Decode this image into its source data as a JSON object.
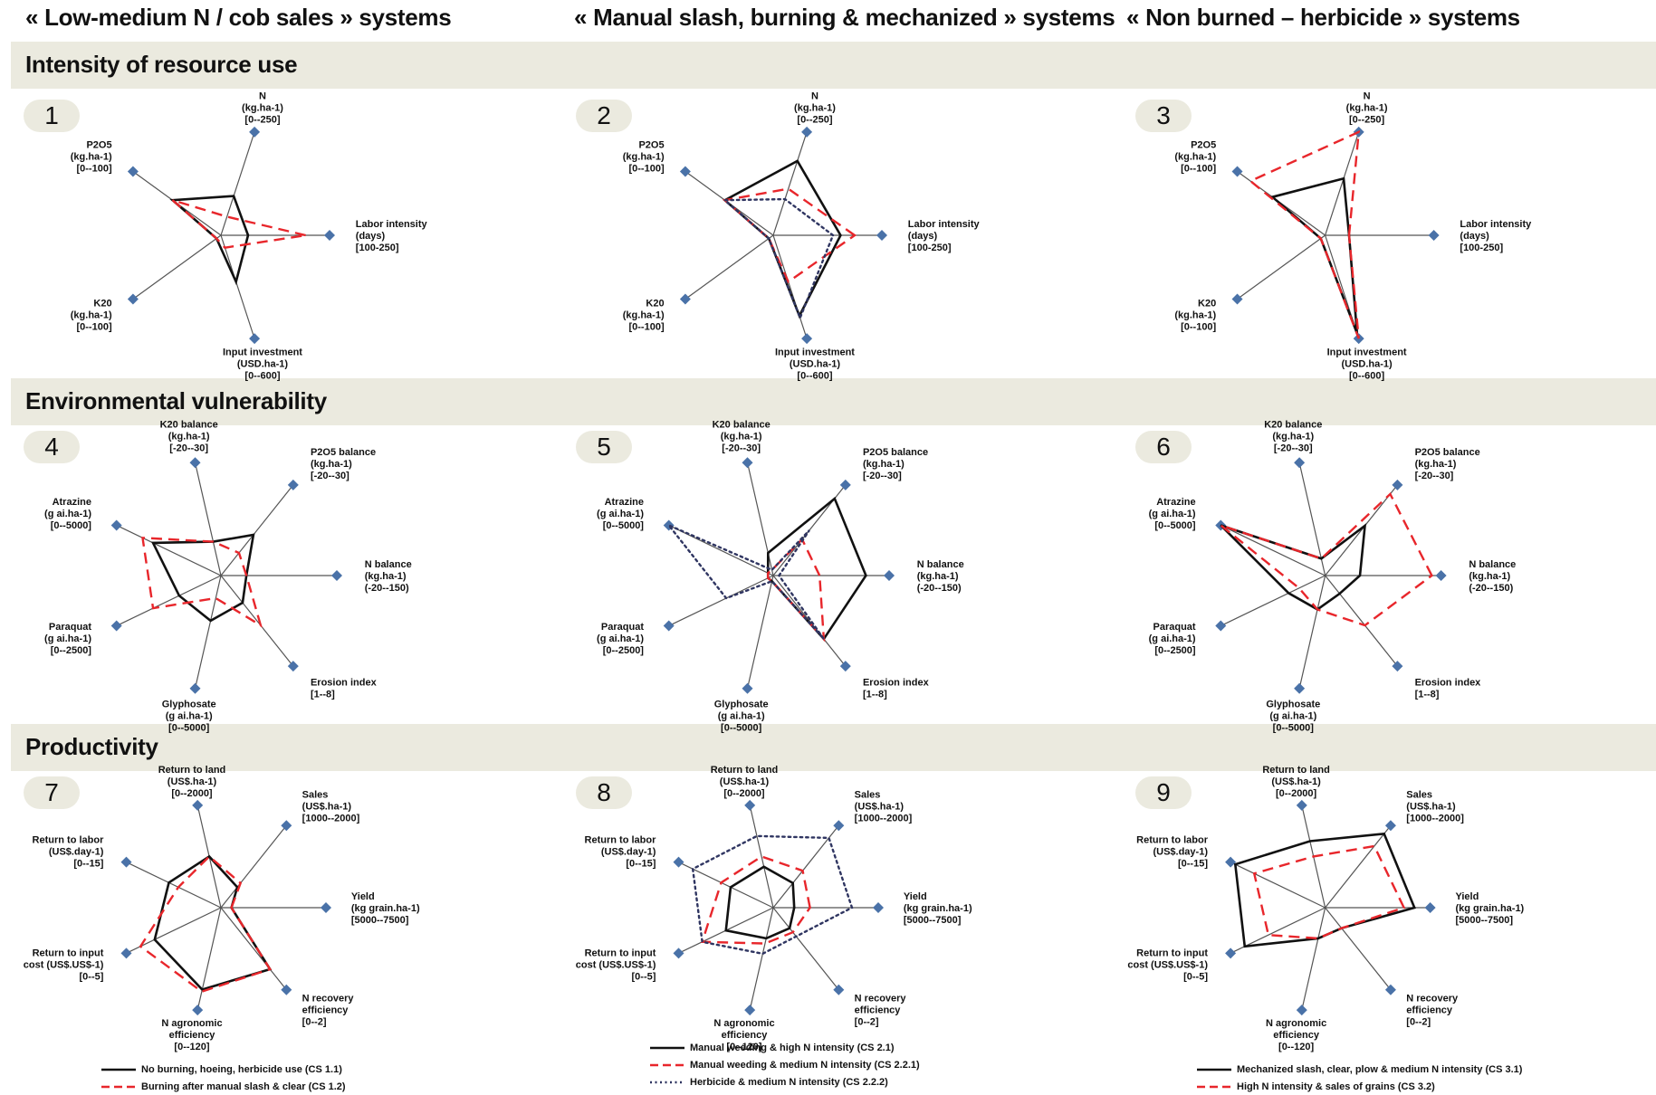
{
  "column_titles": [
    "« Low-medium N / cob sales » systems",
    "« Manual slash, burning & mechanized » systems",
    "« Non burned – herbicide  » systems"
  ],
  "section_titles": [
    "Intensity of resource use",
    "Environmental vulnerability",
    "Productivity"
  ],
  "legends": [
    [
      {
        "style": "solid",
        "label": "No burning, hoeing, herbicide use (CS 1.1)"
      },
      {
        "style": "dashed",
        "label": "Burning after manual slash & clear (CS 1.2)"
      }
    ],
    [
      {
        "style": "solid",
        "label": "Manual weeding & high N intensity (CS 2.1)"
      },
      {
        "style": "dashed",
        "label": "Manual weeding & medium N intensity (CS 2.2.1)"
      },
      {
        "style": "dotted",
        "label": "Herbicide & medium N intensity (CS 2.2.2)"
      }
    ],
    [
      {
        "style": "solid",
        "label": "Mechanized slash, clear, plow & medium N intensity (CS 3.1)"
      },
      {
        "style": "dashed",
        "label": "High N intensity & sales of grains (CS 3.2)"
      }
    ]
  ],
  "colors": {
    "solid": "#111111",
    "dashed": "#e8262b",
    "dotted": "#2f3561",
    "axis": "#555555",
    "marker": "#4a72a8",
    "band": "#ebeadf"
  },
  "chart_data": [
    {
      "id": "1",
      "type": "radar",
      "axes": [
        {
          "label": "Labor intensity\n(days)\n[100-250]",
          "range": [
            100,
            250
          ]
        },
        {
          "label": "N\n(kg.ha-1)\n[0--250]",
          "range": [
            0,
            250
          ]
        },
        {
          "label": "P2O5\n(kg.ha-1)\n[0--100]",
          "range": [
            0,
            100
          ]
        },
        {
          "label": "K20\n(kg.ha-1)\n[0--100]",
          "range": [
            0,
            100
          ]
        },
        {
          "label": "Input investment\n(USD.ha-1)\n[0--600]",
          "range": [
            0,
            600
          ]
        }
      ],
      "series": [
        {
          "style": "solid",
          "values": [
            0.25,
            0.38,
            0.55,
            0.05,
            0.45
          ]
        },
        {
          "style": "dashed",
          "values": [
            0.78,
            0.18,
            0.55,
            0.05,
            0.12
          ]
        }
      ]
    },
    {
      "id": "2",
      "type": "radar",
      "axes": [
        {
          "label": "Labor intensity\n(days)\n[100-250]",
          "range": [
            100,
            250
          ]
        },
        {
          "label": "N\n(kg.ha-1)\n[0--250]",
          "range": [
            0,
            250
          ]
        },
        {
          "label": "P2O5\n(kg.ha-1)\n[0--100]",
          "range": [
            0,
            100
          ]
        },
        {
          "label": "K20\n(kg.ha-1)\n[0--100]",
          "range": [
            0,
            100
          ]
        },
        {
          "label": "Input investment\n(USD.ha-1)\n[0--600]",
          "range": [
            0,
            600
          ]
        }
      ],
      "series": [
        {
          "style": "solid",
          "values": [
            0.62,
            0.72,
            0.55,
            0.05,
            0.78
          ]
        },
        {
          "style": "dashed",
          "values": [
            0.75,
            0.45,
            0.55,
            0.05,
            0.45
          ]
        },
        {
          "style": "dotted",
          "values": [
            0.55,
            0.35,
            0.55,
            0.05,
            0.8
          ]
        }
      ]
    },
    {
      "id": "3",
      "type": "radar",
      "axes": [
        {
          "label": "Labor intensity\n(days)\n[100-250]",
          "range": [
            100,
            250
          ]
        },
        {
          "label": "N\n(kg.ha-1)\n[0--250]",
          "range": [
            0,
            250
          ]
        },
        {
          "label": "P2O5\n(kg.ha-1)\n[0--100]",
          "range": [
            0,
            100
          ]
        },
        {
          "label": "K20\n(kg.ha-1)\n[0--100]",
          "range": [
            0,
            100
          ]
        },
        {
          "label": "Input investment\n(USD.ha-1)\n[0--600]",
          "range": [
            0,
            600
          ]
        }
      ],
      "series": [
        {
          "style": "solid",
          "values": [
            0.22,
            0.55,
            0.6,
            0.05,
            0.95
          ]
        },
        {
          "style": "dashed",
          "values": [
            0.22,
            1.0,
            0.85,
            0.05,
            1.0
          ]
        }
      ]
    },
    {
      "id": "4",
      "type": "radar",
      "axes": [
        {
          "label": "N balance\n(kg.ha-1)\n(-20--150)",
          "range": [
            -20,
            150
          ]
        },
        {
          "label": "P2O5 balance\n(kg.ha-1)\n[-20--30]",
          "range": [
            -20,
            30
          ]
        },
        {
          "label": "K20 balance\n(kg.ha-1)\n[-20--30]",
          "range": [
            -20,
            30
          ]
        },
        {
          "label": "Atrazine\n(g ai.ha-1)\n[0--5000]",
          "range": [
            0,
            5000
          ]
        },
        {
          "label": "Paraquat\n(g ai.ha-1)\n[0--2500]",
          "range": [
            0,
            2500
          ]
        },
        {
          "label": "Glyphosate\n(g ai.ha-1)\n[0--5000]",
          "range": [
            0,
            5000
          ]
        },
        {
          "label": "Erosion index\n[1--8]",
          "range": [
            1,
            8
          ]
        }
      ],
      "series": [
        {
          "style": "solid",
          "values": [
            0.22,
            0.45,
            0.3,
            0.65,
            0.4,
            0.4,
            0.3
          ]
        },
        {
          "style": "dashed",
          "values": [
            0.22,
            0.25,
            0.3,
            0.75,
            0.65,
            0.2,
            0.55
          ]
        }
      ]
    },
    {
      "id": "5",
      "type": "radar",
      "axes": [
        {
          "label": "N balance\n(kg.ha-1)\n(-20--150)",
          "range": [
            -20,
            150
          ]
        },
        {
          "label": "P2O5 balance\n(kg.ha-1)\n[-20--30]",
          "range": [
            -20,
            30
          ]
        },
        {
          "label": "K20 balance\n(kg.ha-1)\n[-20--30]",
          "range": [
            -20,
            30
          ]
        },
        {
          "label": "Atrazine\n(g ai.ha-1)\n[0--5000]",
          "range": [
            0,
            5000
          ]
        },
        {
          "label": "Paraquat\n(g ai.ha-1)\n[0--2500]",
          "range": [
            0,
            2500
          ]
        },
        {
          "label": "Glyphosate\n(g ai.ha-1)\n[0--5000]",
          "range": [
            0,
            5000
          ]
        },
        {
          "label": "Erosion index\n[1--8]",
          "range": [
            1,
            8
          ]
        }
      ],
      "series": [
        {
          "style": "solid",
          "values": [
            0.8,
            0.85,
            0.2,
            0.05,
            0.05,
            0.05,
            0.7
          ]
        },
        {
          "style": "dashed",
          "values": [
            0.4,
            0.4,
            0.05,
            0.05,
            0.05,
            0.05,
            0.7
          ]
        },
        {
          "style": "dotted",
          "values": [
            0.05,
            0.5,
            0.05,
            1.0,
            0.45,
            0.05,
            0.7
          ]
        }
      ]
    },
    {
      "id": "6",
      "type": "radar",
      "axes": [
        {
          "label": "N balance\n(kg.ha-1)\n(-20--150)",
          "range": [
            -20,
            150
          ]
        },
        {
          "label": "P2O5 balance\n(kg.ha-1)\n[-20--30]",
          "range": [
            -20,
            30
          ]
        },
        {
          "label": "K20 balance\n(kg.ha-1)\n[-20--30]",
          "range": [
            -20,
            30
          ]
        },
        {
          "label": "Atrazine\n(g ai.ha-1)\n[0--5000]",
          "range": [
            0,
            5000
          ]
        },
        {
          "label": "Paraquat\n(g ai.ha-1)\n[0--2500]",
          "range": [
            0,
            2500
          ]
        },
        {
          "label": "Glyphosate\n(g ai.ha-1)\n[0--5000]",
          "range": [
            0,
            5000
          ]
        },
        {
          "label": "Erosion index\n[1--8]",
          "range": [
            1,
            8
          ]
        }
      ],
      "series": [
        {
          "style": "solid",
          "values": [
            0.3,
            0.55,
            0.15,
            1.0,
            0.35,
            0.3,
            0.2
          ]
        },
        {
          "style": "dashed",
          "values": [
            0.92,
            0.9,
            0.15,
            1.0,
            0.25,
            0.3,
            0.55
          ]
        }
      ]
    },
    {
      "id": "7",
      "type": "radar",
      "axes": [
        {
          "label": "Yield\n(kg grain.ha-1)\n[5000--7500]",
          "range": [
            5000,
            7500
          ]
        },
        {
          "label": "Sales\n(US$.ha-1)\n[1000--2000]",
          "range": [
            1000,
            2000
          ]
        },
        {
          "label": "Return to land\n(US$.ha-1)\n[0--2000]",
          "range": [
            0,
            2000
          ]
        },
        {
          "label": "Return to labor\n(US$.day-1)\n[0--15]",
          "range": [
            0,
            15
          ]
        },
        {
          "label": "Return to input\ncost (US$.US$-1)\n[0--5]",
          "range": [
            0,
            5
          ]
        },
        {
          "label": "N agronomic\nefficiency\n[0--120]",
          "range": [
            0,
            120
          ]
        },
        {
          "label": "N recovery\nefficiency\n[0--2]",
          "range": [
            0,
            2
          ]
        }
      ],
      "series": [
        {
          "style": "solid",
          "values": [
            0.1,
            0.25,
            0.5,
            0.55,
            0.7,
            0.8,
            0.75
          ]
        },
        {
          "style": "dashed",
          "values": [
            0.1,
            0.3,
            0.5,
            0.45,
            0.85,
            0.82,
            0.75
          ]
        }
      ]
    },
    {
      "id": "8",
      "type": "radar",
      "axes": [
        {
          "label": "Yield\n(kg grain.ha-1)\n[5000--7500]",
          "range": [
            5000,
            7500
          ]
        },
        {
          "label": "Sales\n(US$.ha-1)\n[1000--2000]",
          "range": [
            1000,
            2000
          ]
        },
        {
          "label": "Return to land\n(US$.ha-1)\n[0--2000]",
          "range": [
            0,
            2000
          ]
        },
        {
          "label": "Return to labor\n(US$.day-1)\n[0--15]",
          "range": [
            0,
            15
          ]
        },
        {
          "label": "Return to input\ncost (US$.US$-1)\n[0--5]",
          "range": [
            0,
            5
          ]
        },
        {
          "label": "N agronomic\nefficiency\n[0--120]",
          "range": [
            0,
            120
          ]
        },
        {
          "label": "N recovery\nefficiency\n[0--2]",
          "range": [
            0,
            2
          ]
        }
      ],
      "series": [
        {
          "style": "solid",
          "values": [
            0.2,
            0.3,
            0.4,
            0.45,
            0.5,
            0.3,
            0.25
          ]
        },
        {
          "style": "dashed",
          "values": [
            0.35,
            0.45,
            0.5,
            0.55,
            0.75,
            0.35,
            0.3
          ]
        },
        {
          "style": "dotted",
          "values": [
            0.75,
            0.85,
            0.7,
            0.85,
            0.75,
            0.45,
            0.35
          ]
        }
      ]
    },
    {
      "id": "9",
      "type": "radar",
      "axes": [
        {
          "label": "Yield\n(kg grain.ha-1)\n[5000--7500]",
          "range": [
            5000,
            7500
          ]
        },
        {
          "label": "Sales\n(US$.ha-1)\n[1000--2000]",
          "range": [
            1000,
            2000
          ]
        },
        {
          "label": "Return to land\n(US$.ha-1)\n[0--2000]",
          "range": [
            0,
            2000
          ]
        },
        {
          "label": "Return to labor\n(US$.day-1)\n[0--15]",
          "range": [
            0,
            15
          ]
        },
        {
          "label": "Return to input\ncost (US$.US$-1)\n[0--5]",
          "range": [
            0,
            5
          ]
        },
        {
          "label": "N agronomic\nefficiency\n[0--120]",
          "range": [
            0,
            120
          ]
        },
        {
          "label": "N recovery\nefficiency\n[0--2]",
          "range": [
            0,
            2
          ]
        }
      ],
      "series": [
        {
          "style": "solid",
          "values": [
            0.85,
            0.9,
            0.65,
            0.95,
            0.85,
            0.3,
            0.25
          ]
        },
        {
          "style": "dashed",
          "values": [
            0.75,
            0.75,
            0.5,
            0.75,
            0.6,
            0.3,
            0.25
          ]
        }
      ]
    }
  ]
}
